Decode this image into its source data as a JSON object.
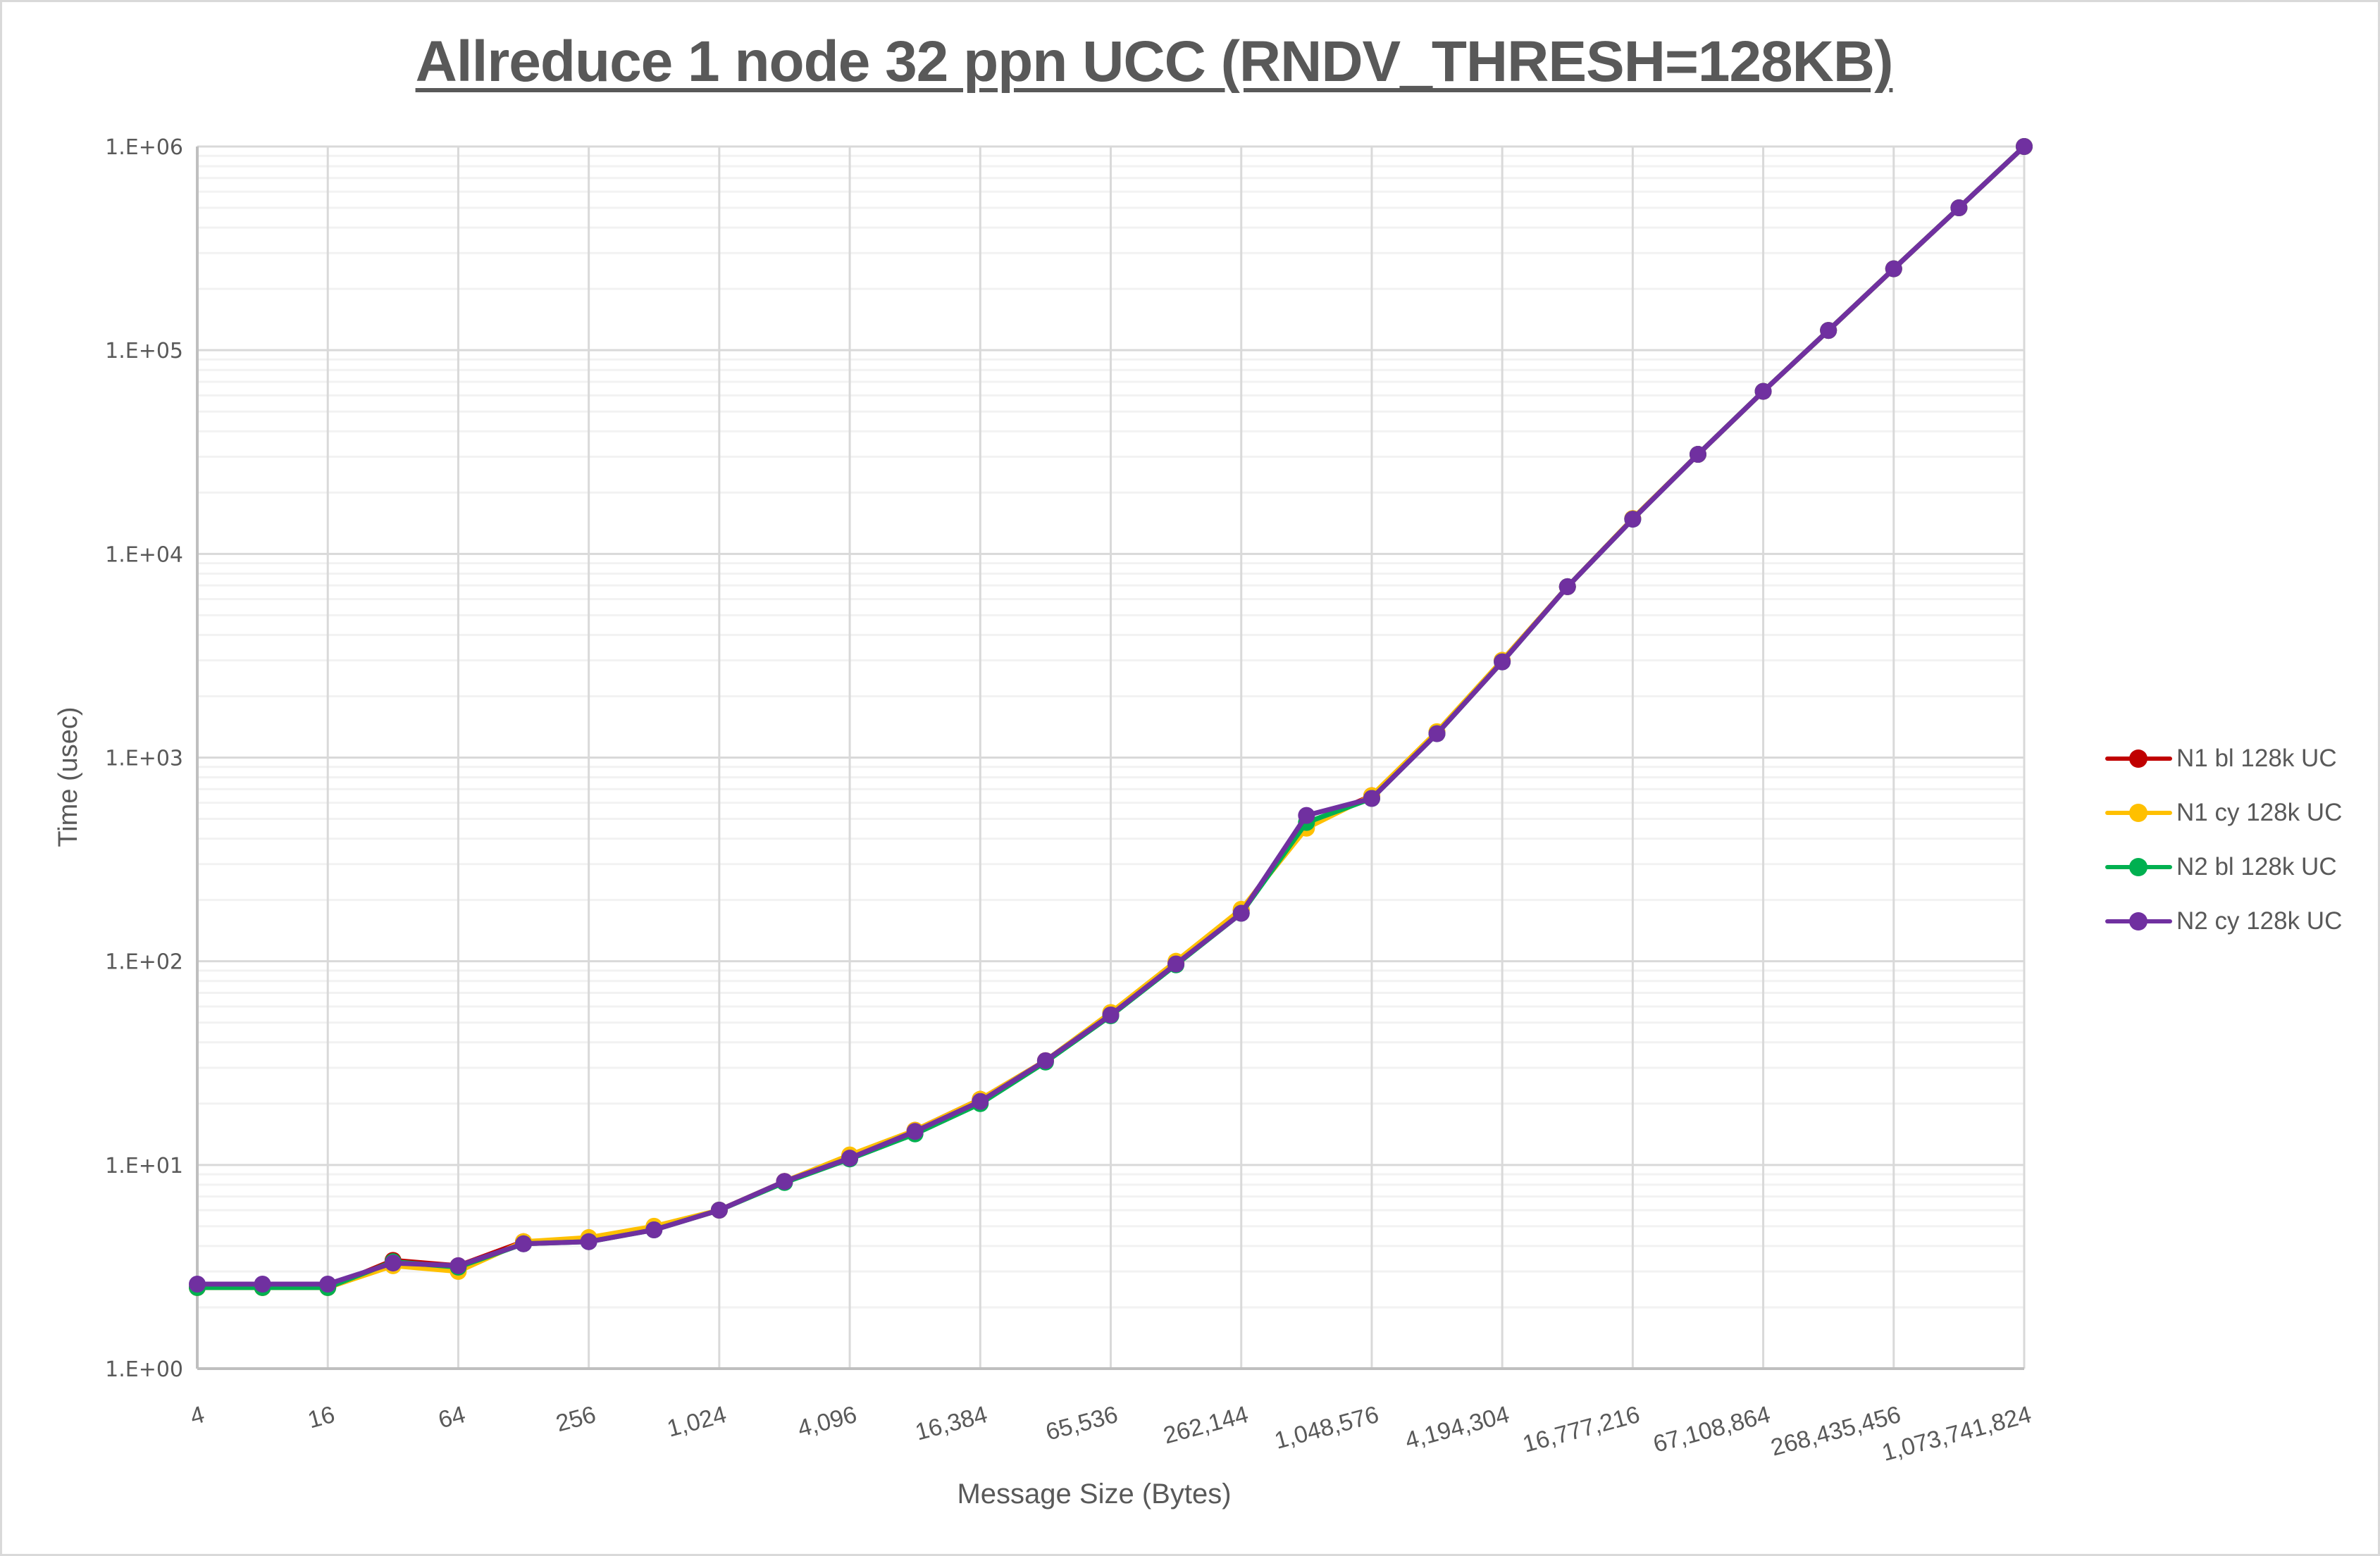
{
  "chart_data": {
    "type": "line",
    "title": "Allreduce 1 node 32 ppn UCC (RNDV_THRESH=128KB)",
    "xlabel": "Message Size (Bytes)",
    "ylabel": "Time (usec)",
    "x_scale": "log2",
    "y_scale": "log10",
    "ylim": [
      1,
      1000000
    ],
    "grid": true,
    "legend_position": "right",
    "y_tick_labels": [
      "1.E+00",
      "1.E+01",
      "1.E+02",
      "1.E+03",
      "1.E+04",
      "1.E+05",
      "1.E+06"
    ],
    "x_tick_labels": [
      "4",
      "16",
      "64",
      "256",
      "1,024",
      "4,096",
      "16,384",
      "65,536",
      "262,144",
      "1,048,576",
      "4,194,304",
      "16,777,216",
      "67,108,864",
      "268,435,456",
      "1,073,741,824"
    ],
    "x": [
      4,
      8,
      16,
      32,
      64,
      128,
      256,
      512,
      1024,
      2048,
      4096,
      8192,
      16384,
      32768,
      65536,
      131072,
      262144,
      524288,
      1048576,
      2097152,
      4194304,
      8388608,
      16777216,
      33554432,
      67108864,
      134217728,
      268435456,
      536870912,
      1073741824
    ],
    "series": [
      {
        "name": "N1 bl 128k UC",
        "color": "#c00000",
        "values": [
          2.5,
          2.5,
          2.5,
          3.4,
          3.2,
          4.2,
          4.3,
          4.9,
          6.0,
          8.3,
          11.0,
          14.8,
          21.0,
          32.5,
          55,
          98,
          178,
          470,
          650,
          1330,
          3000,
          6900,
          14900,
          30800,
          62800,
          125000,
          251000,
          500000,
          1000000
        ]
      },
      {
        "name": "N1 cy 128k UC",
        "color": "#ffc000",
        "values": [
          2.5,
          2.5,
          2.5,
          3.2,
          3.0,
          4.2,
          4.4,
          5.0,
          6.0,
          8.3,
          11.2,
          14.8,
          21.0,
          32.5,
          56,
          100,
          180,
          450,
          650,
          1340,
          3000,
          6900,
          14900,
          30800,
          62800,
          125000,
          251000,
          500000,
          1000000
        ]
      },
      {
        "name": "N2 bl 128k UC",
        "color": "#00b050",
        "values": [
          2.5,
          2.5,
          2.5,
          3.35,
          3.15,
          4.1,
          4.2,
          4.8,
          6.0,
          8.2,
          10.7,
          14.2,
          20.0,
          32.0,
          54,
          96,
          172,
          480,
          630,
          1310,
          2950,
          6900,
          14800,
          30800,
          62800,
          125000,
          251000,
          500000,
          1000000
        ]
      },
      {
        "name": "N2 cy 128k UC",
        "color": "#7030a0",
        "values": [
          2.6,
          2.6,
          2.6,
          3.3,
          3.2,
          4.1,
          4.2,
          4.8,
          6.0,
          8.3,
          10.8,
          14.6,
          20.5,
          32.5,
          54.5,
          97,
          172,
          520,
          630,
          1310,
          2950,
          6900,
          14800,
          30800,
          62800,
          125000,
          251000,
          500000,
          1000000
        ]
      }
    ]
  },
  "legend": {
    "items": [
      {
        "label": "N1 bl 128k UC",
        "color": "#c00000"
      },
      {
        "label": "N1 cy 128k UC",
        "color": "#ffc000"
      },
      {
        "label": "N2 bl 128k UC",
        "color": "#00b050"
      },
      {
        "label": "N2 cy 128k UC",
        "color": "#7030a0"
      }
    ]
  }
}
